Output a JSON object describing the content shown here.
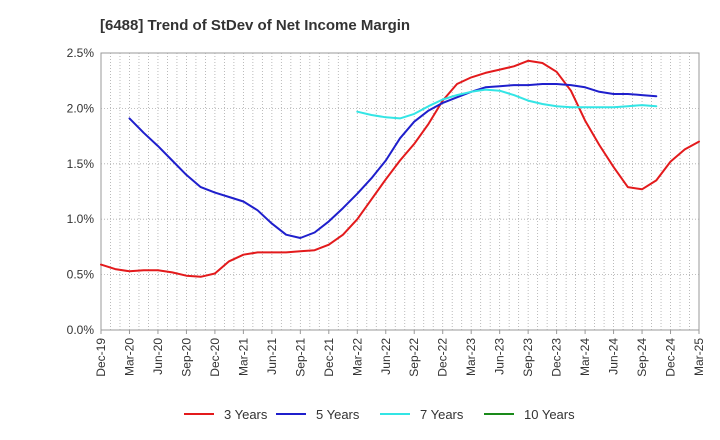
{
  "chart_data": {
    "type": "line",
    "title": "[6488]  Trend of StDev of Net Income Margin",
    "xlabel": "",
    "ylabel": "",
    "ylim": [
      0,
      2.5
    ],
    "y_ticks": [
      "0.0%",
      "0.5%",
      "1.0%",
      "1.5%",
      "2.0%",
      "2.5%"
    ],
    "x_ticks": [
      "Dec-19",
      "Mar-20",
      "Jun-20",
      "Sep-20",
      "Dec-20",
      "Mar-21",
      "Jun-21",
      "Sep-21",
      "Dec-21",
      "Mar-22",
      "Jun-22",
      "Sep-22",
      "Dec-22",
      "Mar-23",
      "Jun-23",
      "Sep-23",
      "Dec-23",
      "Mar-24",
      "Jun-24",
      "Sep-24",
      "Dec-24",
      "Mar-25"
    ],
    "grid": true,
    "legend_position": "bottom",
    "colors": {
      "3 Years": "#e31a1c",
      "5 Years": "#1f1fcc",
      "7 Years": "#33e5e5",
      "10 Years": "#1a8a1a"
    },
    "series": [
      {
        "name": "3 Years",
        "start_index": 0,
        "values": [
          0.59,
          0.55,
          0.53,
          0.54,
          0.54,
          0.52,
          0.49,
          0.48,
          0.51,
          0.62,
          0.68,
          0.7,
          0.7,
          0.7,
          0.71,
          0.72,
          0.77,
          0.86,
          1.0,
          1.18,
          1.36,
          1.53,
          1.68,
          1.86,
          2.07,
          2.22,
          2.28,
          2.32,
          2.35,
          2.38,
          2.43,
          2.41,
          2.33,
          2.16,
          1.89,
          1.67,
          1.47,
          1.29,
          1.27,
          1.35,
          1.52,
          1.63,
          1.7
        ]
      },
      {
        "name": "5 Years",
        "start_index": 2,
        "values": [
          1.91,
          1.78,
          1.66,
          1.53,
          1.4,
          1.29,
          1.24,
          1.2,
          1.16,
          1.08,
          0.96,
          0.86,
          0.83,
          0.88,
          0.98,
          1.1,
          1.23,
          1.37,
          1.53,
          1.73,
          1.88,
          1.98,
          2.05,
          2.1,
          2.15,
          2.19,
          2.2,
          2.21,
          2.21,
          2.22,
          2.22,
          2.21,
          2.19,
          2.15,
          2.13,
          2.13,
          2.12,
          2.11
        ]
      },
      {
        "name": "7 Years",
        "start_index": 18,
        "values": [
          1.97,
          1.94,
          1.92,
          1.91,
          1.95,
          2.02,
          2.08,
          2.12,
          2.15,
          2.17,
          2.16,
          2.12,
          2.07,
          2.04,
          2.02,
          2.01,
          2.01,
          2.01,
          2.01,
          2.02,
          2.03,
          2.02
        ]
      },
      {
        "name": "10 Years",
        "start_index": 0,
        "values": []
      }
    ]
  }
}
